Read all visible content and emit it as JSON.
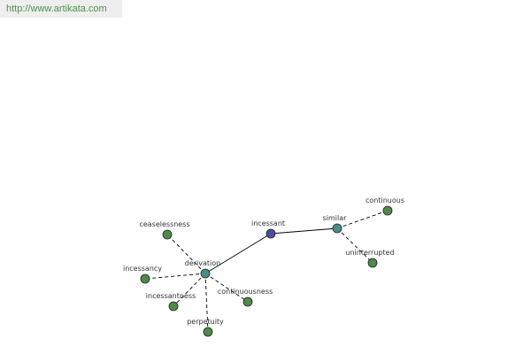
{
  "header": {
    "url": "http://www.artikata.com"
  },
  "nodes": [
    {
      "label": "incessant"
    },
    {
      "label": "similar"
    },
    {
      "label": "derivation"
    },
    {
      "label": "continuous"
    },
    {
      "label": "uninterrupted"
    },
    {
      "label": "ceaselessness"
    },
    {
      "label": "incessancy"
    },
    {
      "label": "incessantness"
    },
    {
      "label": "perpetuity"
    },
    {
      "label": "continuousness"
    }
  ]
}
